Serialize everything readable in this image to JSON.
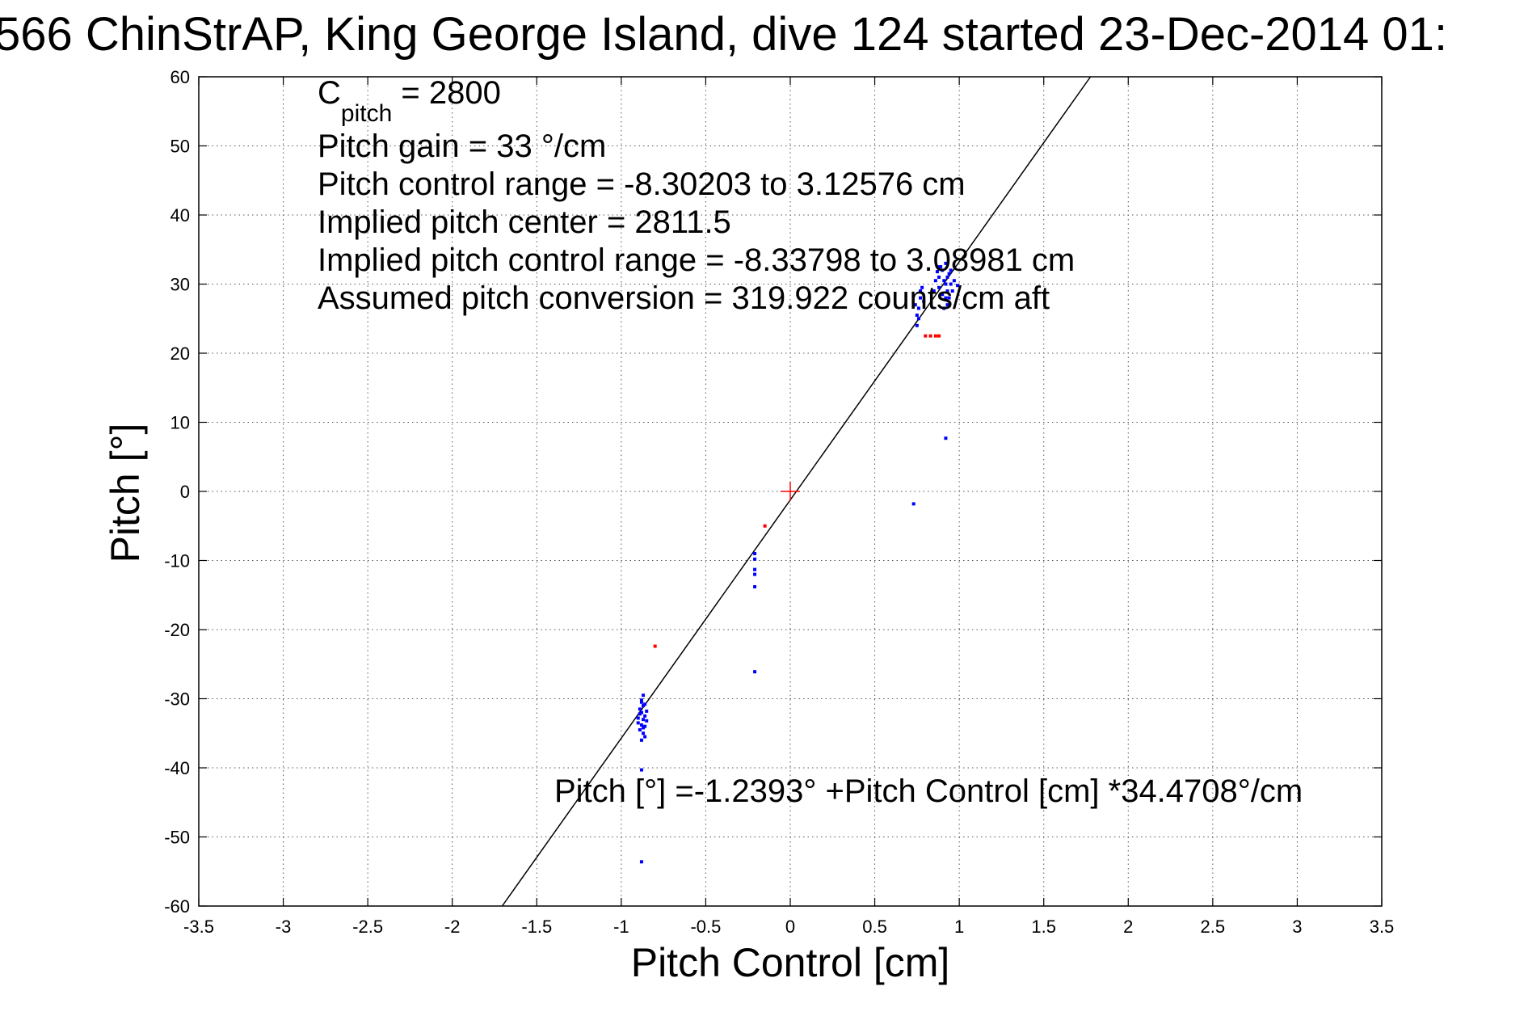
{
  "chart_data": {
    "type": "scatter",
    "title": "566 ChinStrAP, King George Island, dive 124 started 23-Dec-2014 01:",
    "xlabel": "Pitch Control [cm]",
    "ylabel": "Pitch [°]",
    "xlim": [
      -3.5,
      3.5
    ],
    "ylim": [
      -60,
      60
    ],
    "x_ticks": [
      -3.5,
      -3,
      -2.5,
      -2,
      -1.5,
      -1,
      -0.5,
      0,
      0.5,
      1,
      1.5,
      2,
      2.5,
      3,
      3.5
    ],
    "x_tick_labels": [
      "-3.5",
      "-3",
      "-2.5",
      "-2",
      "-1.5",
      "-1",
      "-0.5",
      "0",
      "0.5",
      "1",
      "1.5",
      "2",
      "2.5",
      "3",
      "3.5"
    ],
    "y_ticks": [
      -60,
      -50,
      -40,
      -30,
      -20,
      -10,
      0,
      10,
      20,
      30,
      40,
      50,
      60
    ],
    "y_tick_labels": [
      "-60",
      "-50",
      "-40",
      "-30",
      "-20",
      "-10",
      "0",
      "10",
      "20",
      "30",
      "40",
      "50",
      "60"
    ],
    "grid": true,
    "grid_style": "dotted",
    "annotations": {
      "c_pitch_label": "C",
      "c_pitch_sub": "pitch",
      "c_pitch_value": " = 2800",
      "lines": [
        "Pitch gain = 33 °/cm",
        "Pitch control range = -8.30203 to 3.12576 cm",
        "Implied pitch center = 2811.5",
        "Implied pitch control range = -8.33798 to 3.08981 cm",
        "Assumed pitch conversion = 319.922 counts/cm aft"
      ],
      "fit_equation": "Pitch [°] =-1.2393° +Pitch Control [cm] *34.4708°/cm"
    },
    "fit_line": {
      "intercept": -1.2393,
      "slope": 34.4708,
      "color": "#000000"
    },
    "center_marker": {
      "x": 0,
      "y": 0,
      "color": "#ff0000",
      "shape": "plus"
    },
    "series": [
      {
        "color": "#0000ff",
        "points": [
          [
            -0.87,
            -33.0
          ],
          [
            -0.88,
            -32.0
          ],
          [
            -0.89,
            -31.5
          ],
          [
            -0.9,
            -33.5
          ],
          [
            -0.86,
            -34.0
          ],
          [
            -0.87,
            -31.0
          ],
          [
            -0.88,
            -30.2
          ],
          [
            -0.86,
            -32.5
          ],
          [
            -0.89,
            -34.5
          ],
          [
            -0.87,
            -35.0
          ],
          [
            -0.85,
            -31.8
          ],
          [
            -0.86,
            -30.8
          ],
          [
            -0.88,
            -33.8
          ],
          [
            -0.9,
            -32.8
          ],
          [
            -0.87,
            -29.5
          ],
          [
            -0.86,
            -35.5
          ],
          [
            -0.88,
            -30.5
          ],
          [
            -0.89,
            -32.2
          ],
          [
            -0.85,
            -33.2
          ],
          [
            -0.87,
            -34.2
          ],
          [
            -0.88,
            -36.0
          ],
          [
            -0.88,
            -40.3
          ],
          [
            -0.88,
            -53.6
          ],
          [
            -0.21,
            -9.0
          ],
          [
            -0.21,
            -9.8
          ],
          [
            -0.21,
            -11.3
          ],
          [
            -0.21,
            -12.0
          ],
          [
            -0.21,
            -13.8
          ],
          [
            -0.21,
            -26.1
          ],
          [
            0.73,
            -1.8
          ],
          [
            0.92,
            7.7
          ],
          [
            0.75,
            24.0
          ],
          [
            0.75,
            25.5
          ],
          [
            0.76,
            26.5
          ],
          [
            0.77,
            28.0
          ],
          [
            0.78,
            29.5
          ],
          [
            0.74,
            27.0
          ],
          [
            0.76,
            25.0
          ],
          [
            0.77,
            29.0
          ],
          [
            0.79,
            27.5
          ],
          [
            0.86,
            30.5
          ],
          [
            0.88,
            31.0
          ],
          [
            0.9,
            32.0
          ],
          [
            0.92,
            30.0
          ],
          [
            0.93,
            29.0
          ],
          [
            0.94,
            31.5
          ],
          [
            0.95,
            30.0
          ],
          [
            0.9,
            28.5
          ],
          [
            0.88,
            29.5
          ],
          [
            0.92,
            33.0
          ],
          [
            0.93,
            27.0
          ],
          [
            0.91,
            26.5
          ],
          [
            0.89,
            32.5
          ],
          [
            0.96,
            29.0
          ],
          [
            0.97,
            30.5
          ],
          [
            0.94,
            28.0
          ],
          [
            0.87,
            31.8
          ],
          [
            0.99,
            29.8
          ],
          [
            0.85,
            29.0
          ],
          [
            0.93,
            31.0
          ],
          [
            0.91,
            30.5
          ],
          [
            0.95,
            32.0
          ],
          [
            0.88,
            32.5
          ],
          [
            0.92,
            28.0
          ]
        ]
      },
      {
        "color": "#ff0000",
        "points": [
          [
            -0.15,
            -5.0
          ],
          [
            -0.8,
            -22.4
          ],
          [
            0.8,
            22.5
          ],
          [
            0.83,
            22.5
          ],
          [
            0.86,
            22.5
          ],
          [
            0.88,
            22.5
          ]
        ]
      }
    ]
  }
}
